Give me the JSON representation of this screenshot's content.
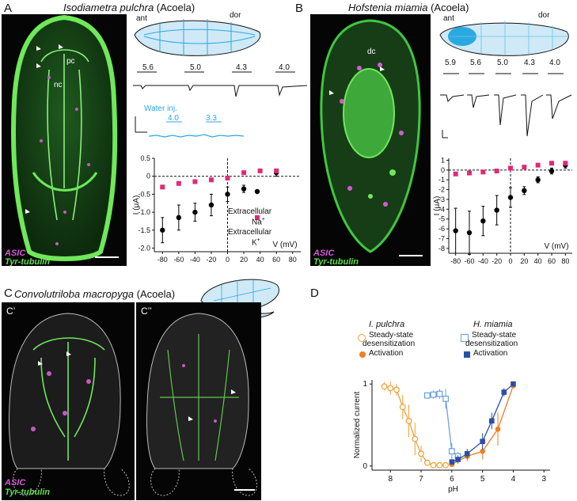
{
  "panels": {
    "A": {
      "letter": "A",
      "species": "Isodiametra pulchra",
      "group": "(Acoela)",
      "schematic_labels": {
        "ant": "ant",
        "dor": "dor"
      },
      "image_labels": [
        "pc",
        "nc"
      ],
      "stain_asic": "ASIC",
      "stain_tub": "Tyr-tubulin",
      "trace_ph": [
        "5.6",
        "5.0",
        "4.3",
        "4.0"
      ],
      "water_label": "Water inj.",
      "water_ph": [
        "4.0",
        "3.3"
      ],
      "legend": {
        "na_label": "Extracellular",
        "na_ion": "Na",
        "na_sup": "+",
        "k_label": "Extracellular",
        "k_ion": "K",
        "k_sup": "+"
      },
      "colors": {
        "na": "#000000",
        "k": "#e0297a",
        "water": "#29a9e0"
      }
    },
    "B": {
      "letter": "B",
      "species": "Hofstenia miamia",
      "group": "(Acoela)",
      "schematic_labels": {
        "ant": "ant",
        "dor": "dor"
      },
      "image_labels": [
        "dc"
      ],
      "stain_asic": "ASIC",
      "stain_tub": "Tyr-tubulin",
      "trace_ph": [
        "5.9",
        "5.6",
        "5.0",
        "4.3",
        "4.0"
      ]
    },
    "C": {
      "letter": "C",
      "species": "Convolutriloba macropyga",
      "group": "(Acoela)",
      "sub1": "C’",
      "sub2": "C’’",
      "stain_asic": "ASIC",
      "stain_tub": "Tyr-tubulin"
    },
    "D": {
      "letter": "D",
      "left_species": "I. pulchra",
      "right_species": "H. miamia",
      "legend_ss": "Steady-state",
      "legend_ss2": "desensitization",
      "legend_act": "Activation",
      "colors": {
        "ip": "#f0a030",
        "hm": "#2b4fa8",
        "hm_ss": "#6aa0e0",
        "ip_act": "#f07d20"
      }
    }
  },
  "chart_data": [
    {
      "type": "scatter",
      "title": "",
      "xlabel": "V (mV)",
      "ylabel": "I (μA)",
      "xlim": [
        -90,
        90
      ],
      "ylim": [
        -2.1,
        0.5
      ],
      "x_ticks": [
        -80,
        -60,
        -40,
        -20,
        0,
        20,
        40,
        60,
        80
      ],
      "x_tick_labels": [
        "-80",
        "-60",
        "-40",
        "-20",
        "0",
        "20",
        "40",
        "60",
        "80"
      ],
      "y_ticks": [
        0.5,
        0,
        -0.5,
        -1.0,
        -1.5,
        -2.0
      ],
      "y_tick_labels": [
        "0.5",
        "0",
        "-0.5",
        "-1.0",
        "-1.5",
        "-2.0"
      ],
      "series": [
        {
          "name": "Extracellular Na+",
          "x": [
            -80,
            -60,
            -40,
            -20,
            0,
            20,
            60
          ],
          "y": [
            -1.5,
            -1.15,
            -1.0,
            -0.8,
            -0.5,
            -0.35,
            0.1
          ],
          "err": [
            0.35,
            0.35,
            0.25,
            0.3,
            0.2,
            0.1,
            0.1
          ]
        },
        {
          "name": "Extracellular K+",
          "x": [
            -80,
            -60,
            -40,
            -20,
            0,
            20,
            40,
            60
          ],
          "y": [
            -0.3,
            -0.2,
            -0.15,
            -0.1,
            -0.05,
            0.1,
            0.15,
            0.15
          ],
          "err": [
            0.05,
            0,
            0,
            0,
            0,
            0,
            0,
            0
          ]
        }
      ]
    },
    {
      "type": "scatter",
      "title": "",
      "xlabel": "V (mV)",
      "ylabel": "I (μA)",
      "xlim": [
        -90,
        90
      ],
      "ylim": [
        -8.5,
        1.2
      ],
      "x_ticks": [
        -80,
        -60,
        -40,
        -20,
        0,
        20,
        40,
        60,
        80
      ],
      "x_tick_labels": [
        "-80",
        "-60",
        "-40",
        "-20",
        "0",
        "20",
        "40",
        "60",
        "80"
      ],
      "y_ticks": [
        1,
        0,
        -1,
        -2,
        -3,
        -4,
        -5,
        -6,
        -7,
        -8
      ],
      "y_tick_labels": [
        "1",
        "0",
        "-1",
        "-2",
        "-3",
        "-4",
        "-5",
        "-6",
        "-7",
        "-8"
      ],
      "series": [
        {
          "name": "Extracellular Na+",
          "x": [
            -80,
            -60,
            -40,
            -20,
            0,
            20,
            40,
            60,
            80
          ],
          "y": [
            -6.2,
            -6.4,
            -5.2,
            -4.1,
            -2.8,
            -2.1,
            -1.0,
            -0.1,
            0.5
          ],
          "err": [
            2.3,
            2.2,
            1.5,
            1.5,
            1.0,
            0.4,
            0.3,
            0.3,
            0.3
          ]
        },
        {
          "name": "Extracellular K+",
          "x": [
            -80,
            -60,
            -40,
            -20,
            0,
            20,
            40,
            60,
            80
          ],
          "y": [
            -0.4,
            -0.3,
            -0.2,
            -0.1,
            0.2,
            0.3,
            0.5,
            0.7,
            0.7
          ],
          "err": [
            0,
            0,
            0,
            0,
            0,
            0,
            0,
            0,
            0
          ]
        }
      ]
    },
    {
      "type": "line",
      "title": "",
      "xlabel": "pH",
      "ylabel": "Normalized current",
      "xlim": [
        8.6,
        2.8
      ],
      "ylim": [
        -0.05,
        1.05
      ],
      "x_ticks": [
        8,
        7,
        6,
        5,
        4,
        3
      ],
      "x_tick_labels": [
        "8",
        "7",
        "6",
        "5",
        "4",
        "3"
      ],
      "y_ticks": [
        0,
        1
      ],
      "y_tick_labels": [
        "0",
        "1"
      ],
      "series": [
        {
          "name": "I. pulchra Steady-state desensitization",
          "x": [
            8.2,
            8.0,
            7.8,
            7.6,
            7.4,
            7.2,
            7.0,
            6.8,
            6.6,
            6.4,
            6.2
          ],
          "y": [
            0.97,
            0.95,
            0.93,
            0.72,
            0.55,
            0.33,
            0.15,
            0.04,
            0.01,
            0.01,
            0.01
          ],
          "err": [
            0.05,
            0.08,
            0.07,
            0.15,
            0.2,
            0.2,
            0.1,
            0.03,
            0,
            0,
            0
          ]
        },
        {
          "name": "H. miamia Steady-state desensitization",
          "x": [
            6.8,
            6.6,
            6.4,
            6.2,
            6.0,
            5.8
          ],
          "y": [
            0.86,
            0.87,
            0.88,
            0.82,
            0.18,
            0.12
          ],
          "err": [
            0.03,
            0.05,
            0.06,
            0.12,
            0.1,
            0.05
          ]
        },
        {
          "name": "I. pulchra Activation",
          "x": [
            6.0,
            5.5,
            5.0,
            4.5,
            4.0
          ],
          "y": [
            0.02,
            0.12,
            0.18,
            0.45,
            0.98
          ],
          "err": [
            0.02,
            0.06,
            0.1,
            0.2,
            0.02
          ]
        },
        {
          "name": "H. miamia Activation",
          "x": [
            6.0,
            5.8,
            5.5,
            5.0,
            4.7,
            4.3,
            4.0
          ],
          "y": [
            0.05,
            0.08,
            0.15,
            0.3,
            0.55,
            0.9,
            1.0
          ],
          "err": [
            0.03,
            0.05,
            0.06,
            0.1,
            0.1,
            0.05,
            0.02
          ]
        }
      ]
    }
  ]
}
